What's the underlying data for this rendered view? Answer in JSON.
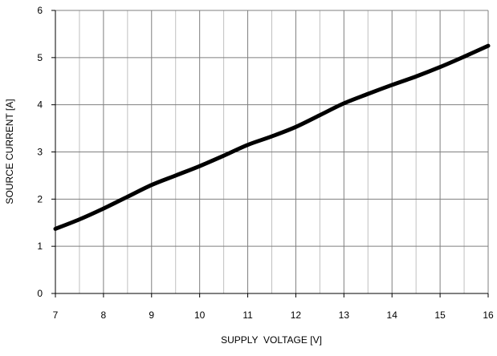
{
  "chart_data": {
    "type": "line",
    "title": "",
    "xlabel": "SUPPLY  VOLTAGE [V]",
    "ylabel": "SOURCE CURRENT [A]",
    "xlim": [
      7,
      16
    ],
    "ylim": [
      0,
      6
    ],
    "x_ticks": [
      "7",
      "8",
      "9",
      "10",
      "11",
      "12",
      "13",
      "14",
      "15",
      "16"
    ],
    "y_ticks": [
      "0",
      "1",
      "2",
      "3",
      "4",
      "5",
      "6"
    ],
    "x_minor_step": 0.5,
    "grid": true,
    "legend": "none",
    "series": [
      {
        "color": "#000000",
        "x": [
          7,
          7.5,
          8,
          8.5,
          9,
          9.5,
          10,
          10.5,
          11,
          11.5,
          12,
          12.5,
          13,
          13.5,
          14,
          14.5,
          15,
          15.5,
          16
        ],
        "y": [
          1.37,
          1.57,
          1.8,
          2.05,
          2.3,
          2.5,
          2.7,
          2.92,
          3.15,
          3.33,
          3.53,
          3.78,
          4.03,
          4.23,
          4.42,
          4.6,
          4.8,
          5.02,
          5.25
        ]
      }
    ],
    "colors": {
      "major_grid": "#7f7f7f",
      "minor_grid": "#c0c0c0",
      "axis": "#000000",
      "line": "#000000"
    }
  }
}
